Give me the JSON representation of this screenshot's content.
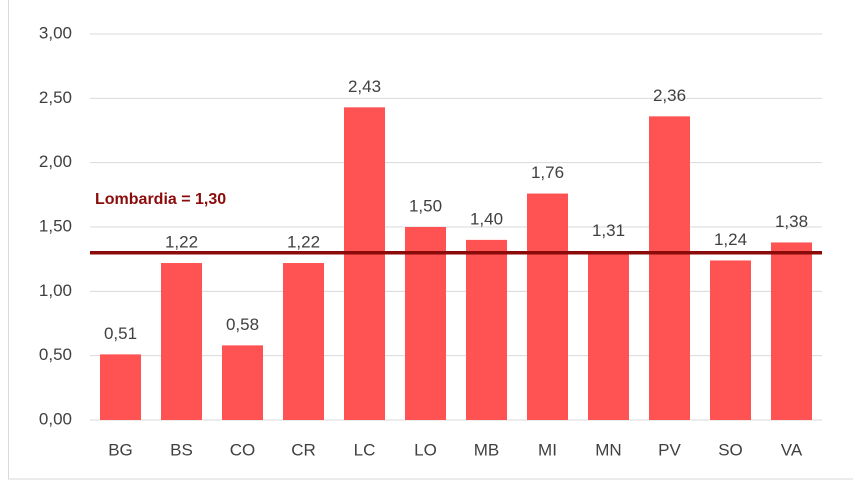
{
  "chart_data": {
    "type": "bar",
    "categories": [
      "BG",
      "BS",
      "CO",
      "CR",
      "LC",
      "LO",
      "MB",
      "MI",
      "MN",
      "PV",
      "SO",
      "VA"
    ],
    "values": [
      0.51,
      1.22,
      0.58,
      1.22,
      2.43,
      1.5,
      1.4,
      1.76,
      1.31,
      2.36,
      1.24,
      1.38
    ],
    "value_labels": [
      "0,51",
      "1,22",
      "0,58",
      "1,22",
      "2,43",
      "1,50",
      "1,40",
      "1,76",
      "1,31",
      "2,36",
      "1,24",
      "1,38"
    ],
    "color": "#ff5252",
    "ylim": [
      0,
      3
    ],
    "yticks": [
      {
        "value": 0,
        "label": "0,00"
      },
      {
        "value": 0.5,
        "label": "0,50"
      },
      {
        "value": 1,
        "label": "1,00"
      },
      {
        "value": 1.5,
        "label": "1,50"
      },
      {
        "value": 2,
        "label": "2,00"
      },
      {
        "value": 2.5,
        "label": "2,50"
      },
      {
        "value": 3,
        "label": "3,00"
      }
    ],
    "grid": true,
    "reference_line": {
      "label": "Lombardia = 1,30",
      "value": 1.3,
      "color": "#8b0a0a"
    }
  }
}
